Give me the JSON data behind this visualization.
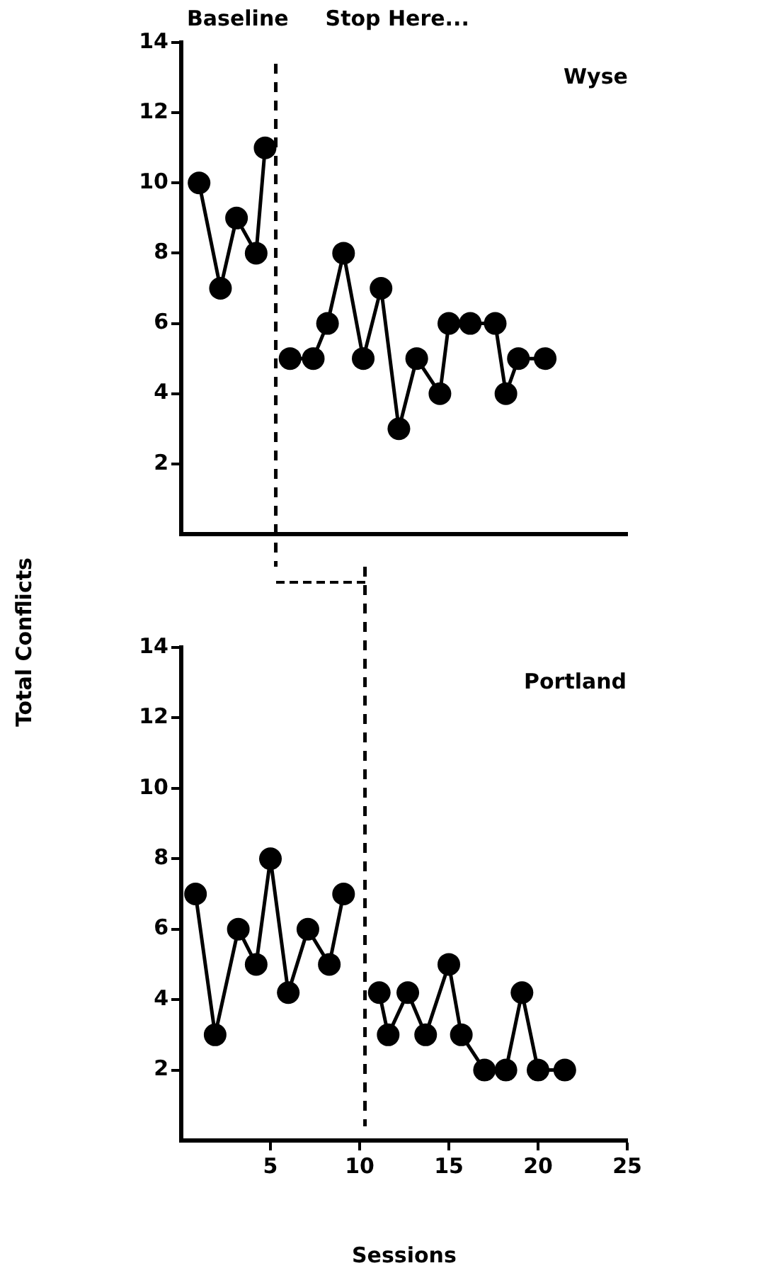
{
  "chart_data": [
    {
      "type": "line",
      "title": "Wyse",
      "annotations": [
        "Baseline",
        "Stop Here..."
      ],
      "xlim": [
        0,
        25
      ],
      "ylim": [
        0,
        14
      ],
      "yticks": [
        2,
        4,
        6,
        8,
        10,
        12,
        14
      ],
      "tick_labels": "y",
      "marker": "circle",
      "grid": false,
      "series": [
        {
          "color": "#000000",
          "x": [
            1,
            2.2,
            3.1,
            4.2,
            4.7
          ],
          "values": [
            10,
            7,
            9,
            8,
            11
          ]
        },
        {
          "color": "#000000",
          "x": [
            6.1,
            7.4,
            8.2,
            9.1,
            10.2,
            11.2,
            12.2,
            13.2,
            14.5,
            15.0,
            16.2,
            17.6,
            18.2,
            18.9,
            20.4
          ],
          "values": [
            5,
            5,
            6,
            8,
            5,
            7,
            3,
            5,
            4,
            6,
            6,
            6,
            4,
            5,
            5
          ]
        }
      ],
      "ref_lines": [
        {
          "axis": "x",
          "value": 5.3,
          "line_style": "dashed",
          "color": "#000000"
        }
      ]
    },
    {
      "type": "line",
      "title": "Portland",
      "xlabel": "Sessions",
      "ylabel": "Total Conflicts",
      "xlim": [
        0,
        25
      ],
      "ylim": [
        0,
        14
      ],
      "xticks": [
        5,
        10,
        15,
        20,
        25
      ],
      "yticks": [
        2,
        4,
        6,
        8,
        10,
        12,
        14
      ],
      "marker": "circle",
      "grid": false,
      "series": [
        {
          "color": "#000000",
          "x": [
            0.8,
            1.9,
            3.2,
            4.2,
            5.0,
            6.0,
            7.1,
            8.3,
            9.1
          ],
          "values": [
            7,
            3,
            6,
            5,
            8,
            4.2,
            6,
            5,
            7
          ]
        },
        {
          "color": "#000000",
          "x": [
            11.1,
            11.6,
            12.7,
            13.7,
            15.0,
            15.7,
            17.0,
            18.2,
            19.1,
            20.0,
            21.5
          ],
          "values": [
            4.2,
            3,
            4.2,
            3,
            5,
            3,
            2,
            2,
            4.2,
            2,
            2
          ]
        }
      ],
      "ref_lines": [
        {
          "axis": "x",
          "value": 10.3,
          "line_style": "dashed",
          "color": "#000000"
        }
      ]
    }
  ]
}
